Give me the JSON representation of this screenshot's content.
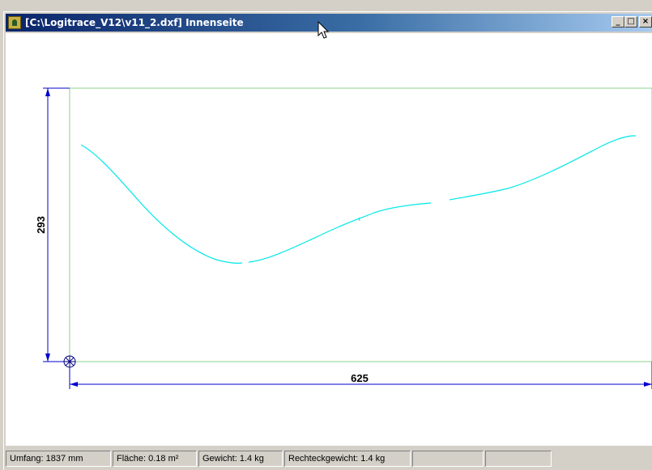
{
  "window": {
    "title": "[C:\\Logitrace_V12\\v11_2.dxf] Innenseite",
    "buttons": {
      "minimize": "_",
      "maximize": "□",
      "close": "×"
    }
  },
  "drawing": {
    "height_dimension": "293",
    "width_dimension": "625",
    "outline_color": "#8cd08c",
    "curve_color": "#00e8e8",
    "dimension_color": "#0000cc"
  },
  "statusbar": {
    "umfang": "Umfang: 1837 mm",
    "flaeche": "Fläche: 0.18 m²",
    "gewicht": "Gewicht: 1.4 kg",
    "rechteckgewicht": "Rechteckgewicht: 1.4 kg",
    "empty1": "",
    "empty2": ""
  }
}
